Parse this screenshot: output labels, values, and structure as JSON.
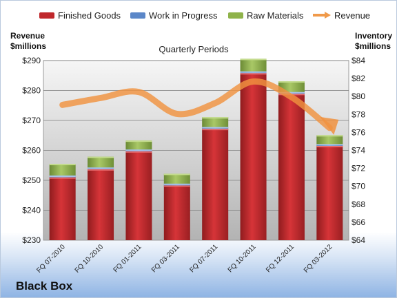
{
  "header": {
    "left_axis_title": [
      "Revenue",
      "$millions"
    ],
    "right_axis_title": [
      "Inventory",
      "$millions"
    ]
  },
  "legend": [
    {
      "label": "Finished Goods",
      "color": "#c0282c",
      "kind": "bar"
    },
    {
      "label": "Work in Progress",
      "color": "#5b87c8",
      "kind": "bar"
    },
    {
      "label": "Raw Materials",
      "color": "#8fb34a",
      "kind": "bar"
    },
    {
      "label": "Revenue",
      "color": "#f09a4a",
      "kind": "arrow"
    }
  ],
  "company": "Black Box",
  "chart_data": {
    "type": "bar",
    "stacked": true,
    "title": "Quarterly Periods",
    "categories": [
      "FQ 07-2010",
      "FQ 10-2010",
      "FQ 01-2011",
      "FQ 03-2011",
      "FQ 07-2011",
      "FQ 10-2011",
      "FQ 12-2011",
      "FQ 03-2012"
    ],
    "series": [
      {
        "name": "Finished Goods",
        "axis": "right",
        "values": [
          71.0,
          71.9,
          73.9,
          70.1,
          76.4,
          82.6,
          80.3,
          74.5
        ]
      },
      {
        "name": "Work in Progress",
        "axis": "right",
        "values": [
          0.2,
          0.2,
          0.2,
          0.2,
          0.2,
          0.2,
          0.2,
          0.2
        ]
      },
      {
        "name": "Raw Materials",
        "axis": "right",
        "values": [
          1.3,
          1.2,
          1.0,
          1.1,
          1.1,
          1.4,
          1.2,
          1.0
        ]
      },
      {
        "name": "Revenue",
        "axis": "left",
        "type": "line",
        "values": [
          275.2,
          277.5,
          279.5,
          272.2,
          275.8,
          283.0,
          277.8,
          267.5
        ]
      }
    ],
    "left_axis": {
      "ylim": [
        230,
        290
      ],
      "ticks": [
        "$230",
        "$240",
        "$250",
        "$260",
        "$270",
        "$280",
        "$290"
      ]
    },
    "right_axis": {
      "ylim": [
        64,
        84
      ],
      "ticks": [
        "$64",
        "$66",
        "$68",
        "$70",
        "$72",
        "$74",
        "$76",
        "$78",
        "$80",
        "$82",
        "$84"
      ]
    },
    "grid": true,
    "legend_position": "top"
  }
}
